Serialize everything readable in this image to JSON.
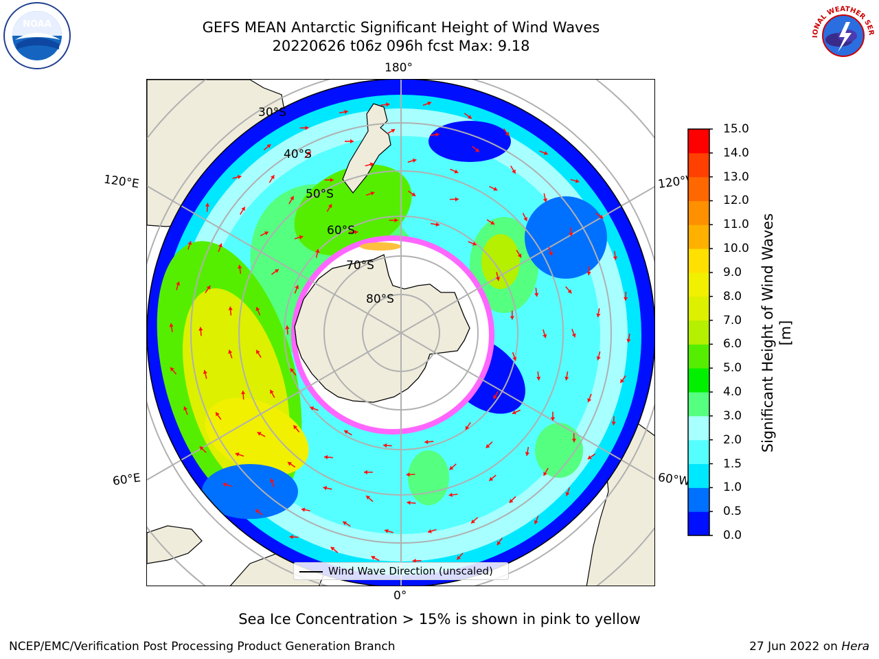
{
  "header": {
    "title_line1": "GEFS MEAN Antarctic Significant Height of Wind Waves",
    "title_line2": "20220626 t06z 096h fcst   Max: 9.18"
  },
  "logos": {
    "left": "NOAA",
    "right_text": "NATIONAL WEATHER SERVICE"
  },
  "map": {
    "projection": "south-polar-stereographic",
    "longitude_labels": {
      "top": "180°",
      "bottom": "0°",
      "upper_left": "120°E",
      "upper_right": "120°W",
      "lower_left": "60°E",
      "lower_right": "60°W"
    },
    "latitude_labels": [
      "30°S",
      "40°S",
      "50°S",
      "60°S",
      "70°S",
      "80°S"
    ],
    "legend_label": "Wind Wave Direction (unscaled)"
  },
  "colorbar": {
    "label": "Significant Height of Wind Waves [m]",
    "ticks": [
      "0.0",
      "0.5",
      "1.0",
      "1.5",
      "2.0",
      "3.0",
      "4.0",
      "5.0",
      "6.0",
      "7.0",
      "8.0",
      "9.0",
      "10.0",
      "11.0",
      "12.0",
      "13.0",
      "14.0",
      "15.0"
    ],
    "colors": [
      "#0010ff",
      "#0070ff",
      "#00e8ff",
      "#55ffff",
      "#a8ffff",
      "#55ff80",
      "#00f000",
      "#55ee00",
      "#b4f000",
      "#dcf000",
      "#f0f000",
      "#ffe000",
      "#ffb000",
      "#ff9000",
      "#ff6800",
      "#ff4000",
      "#ff0000"
    ]
  },
  "note": "Sea Ice Concentration > 15% is shown in pink to yellow",
  "footer": {
    "left": "NCEP/EMC/Verification Post Processing Product Generation Branch",
    "right_date": "27 Jun 2022 on ",
    "right_host": "Hera"
  }
}
